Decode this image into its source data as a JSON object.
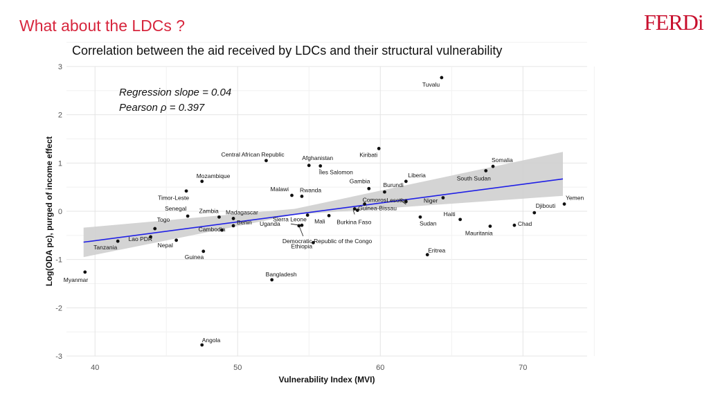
{
  "header": {
    "title": "What about the LDCs ?",
    "logo_text": "FERDi",
    "brand_color": "#d7263d"
  },
  "chart_data": {
    "type": "scatter",
    "title": "Correlation between the aid received by LDCs and their structural vulnerability",
    "xlabel": "Vulnerability Index (MVI)",
    "ylabel": "Log(ODA pc), purged of income effect",
    "xlim": [
      38,
      74.5
    ],
    "ylim": [
      -3,
      3
    ],
    "xticks": [
      40,
      50,
      60,
      70
    ],
    "yticks": [
      -3,
      -2,
      -1,
      0,
      1,
      2,
      3
    ],
    "grid": true,
    "annotations": [
      "Regression slope = 0.04",
      "Pearson ρ = 0.397"
    ],
    "regression": {
      "x_start": 39.2,
      "y_start": -0.64,
      "x_end": 72.8,
      "y_end": 0.67,
      "color": "#1f1fe6"
    },
    "confidence_band": {
      "x": [
        39.2,
        54.0,
        72.8
      ],
      "lower": [
        -0.95,
        -0.07,
        0.32
      ],
      "upper": [
        -0.34,
        0.05,
        1.23
      ],
      "color": "#cfcfcf"
    },
    "points": [
      {
        "name": "Tuvalu",
        "x": 64.3,
        "y": 2.77
      },
      {
        "name": "Kiribati",
        "x": 59.9,
        "y": 1.3
      },
      {
        "name": "Central African Republic",
        "x": 52.0,
        "y": 1.05
      },
      {
        "name": "Afghanistan",
        "x": 55.0,
        "y": 0.95
      },
      {
        "name": "Îles Salomon",
        "x": 55.8,
        "y": 0.94
      },
      {
        "name": "Somalia",
        "x": 67.9,
        "y": 0.93
      },
      {
        "name": "South Sudan",
        "x": 67.4,
        "y": 0.84
      },
      {
        "name": "Liberia",
        "x": 61.8,
        "y": 0.62
      },
      {
        "name": "Mozambique",
        "x": 47.5,
        "y": 0.62
      },
      {
        "name": "Gambia",
        "x": 59.2,
        "y": 0.47
      },
      {
        "name": "Burundi",
        "x": 60.3,
        "y": 0.4
      },
      {
        "name": "Timor-Leste",
        "x": 46.4,
        "y": 0.42
      },
      {
        "name": "Malawi",
        "x": 53.8,
        "y": 0.33
      },
      {
        "name": "Rwanda",
        "x": 54.5,
        "y": 0.31
      },
      {
        "name": "Comoros",
        "x": 58.9,
        "y": 0.15
      },
      {
        "name": "Lesotho",
        "x": 61.8,
        "y": 0.2
      },
      {
        "name": "Niger",
        "x": 64.4,
        "y": 0.28
      },
      {
        "name": "Yemen",
        "x": 72.9,
        "y": 0.15
      },
      {
        "name": "Djibouti",
        "x": 70.8,
        "y": -0.03
      },
      {
        "name": "Guinea-Bissau",
        "x": 58.2,
        "y": 0.05
      },
      {
        "name": "Haiti",
        "x": 65.6,
        "y": -0.17
      },
      {
        "name": "Chad",
        "x": 69.4,
        "y": -0.29
      },
      {
        "name": "Mauritania",
        "x": 67.7,
        "y": -0.31
      },
      {
        "name": "Sudan",
        "x": 62.8,
        "y": -0.12
      },
      {
        "name": "Senegal",
        "x": 46.5,
        "y": -0.1
      },
      {
        "name": "Zambia",
        "x": 48.7,
        "y": -0.12
      },
      {
        "name": "Madagascar",
        "x": 49.7,
        "y": -0.15
      },
      {
        "name": "Sierra Leone",
        "x": 54.9,
        "y": -0.08
      },
      {
        "name": "Mali",
        "x": 56.4,
        "y": -0.09
      },
      {
        "name": "Burkina Faso",
        "x": 58.4,
        "y": 0.02
      },
      {
        "name": "Benin",
        "x": 49.7,
        "y": -0.3
      },
      {
        "name": "Uganda",
        "x": 54.5,
        "y": -0.29
      },
      {
        "name": "Togo",
        "x": 44.2,
        "y": -0.36
      },
      {
        "name": "Cambodia",
        "x": 48.9,
        "y": -0.39
      },
      {
        "name": "Democratic Republic of the Congo",
        "x": 54.3,
        "y": -0.3
      },
      {
        "name": "Nepal",
        "x": 45.7,
        "y": -0.6
      },
      {
        "name": "Lao PDR",
        "x": 43.9,
        "y": -0.53
      },
      {
        "name": "Tanzania",
        "x": 41.6,
        "y": -0.62
      },
      {
        "name": "Ethiopia",
        "x": 55.3,
        "y": -0.65
      },
      {
        "name": "Eritrea",
        "x": 63.3,
        "y": -0.9
      },
      {
        "name": "Guinea",
        "x": 47.6,
        "y": -0.83
      },
      {
        "name": "Myanmar",
        "x": 39.3,
        "y": -1.26
      },
      {
        "name": "Bangladesh",
        "x": 52.4,
        "y": -1.42
      },
      {
        "name": "Angola",
        "x": 47.5,
        "y": -2.77
      }
    ]
  }
}
